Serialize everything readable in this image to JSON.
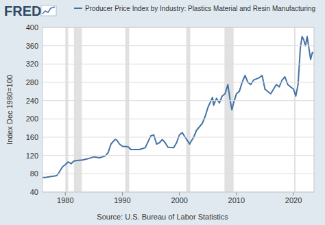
{
  "chart_data": {
    "type": "line",
    "logo": "FRED",
    "y_label": "Index Dec 1980=100",
    "source": "Source: U.S. Bureau of Labor Statistics",
    "grid": true,
    "xlim": [
      1976,
      2023.6
    ],
    "ylim": [
      40,
      400
    ],
    "xticks": [
      1980,
      1990,
      2000,
      2010,
      2020
    ],
    "yticks": [
      40,
      80,
      120,
      160,
      200,
      240,
      280,
      320,
      360,
      400
    ],
    "recessions": [
      {
        "start": 1980.0,
        "end": 1980.5
      },
      {
        "start": 1981.5,
        "end": 1982.9
      },
      {
        "start": 1990.5,
        "end": 1991.2
      },
      {
        "start": 2001.2,
        "end": 2001.9
      },
      {
        "start": 2007.9,
        "end": 2009.5
      },
      {
        "start": 2020.1,
        "end": 2020.35
      }
    ],
    "x": [
      1976.0,
      1976.5,
      1977.0,
      1977.5,
      1978.0,
      1978.5,
      1979.0,
      1979.5,
      1980.0,
      1980.5,
      1981.0,
      1981.5,
      1982.0,
      1983.0,
      1984.0,
      1985.0,
      1986.0,
      1987.0,
      1987.5,
      1988.0,
      1988.7,
      1989.0,
      1989.5,
      1990.0,
      1991.0,
      1991.5,
      1992.0,
      1993.0,
      1994.0,
      1994.5,
      1995.0,
      1995.5,
      1996.0,
      1996.5,
      1997.0,
      1997.5,
      1998.0,
      1999.0,
      1999.5,
      2000.0,
      2000.5,
      2001.0,
      2001.8,
      2002.0,
      2002.5,
      2003.0,
      2004.0,
      2004.5,
      2005.0,
      2005.8,
      2006.0,
      2006.5,
      2007.0,
      2007.5,
      2008.0,
      2008.5,
      2008.9,
      2009.2,
      2009.5,
      2010.0,
      2010.5,
      2011.0,
      2011.5,
      2012.0,
      2012.5,
      2013.0,
      2014.0,
      2014.5,
      2015.0,
      2016.0,
      2016.5,
      2017.0,
      2017.5,
      2018.0,
      2018.5,
      2019.0,
      2019.5,
      2020.0,
      2020.4,
      2020.8,
      2021.2,
      2021.5,
      2021.8,
      2022.1,
      2022.4,
      2022.7,
      2023.0,
      2023.3,
      2023.5
    ],
    "series": [
      {
        "name": "Producer Price Index by Industry: Plastics Material and Resin Manufacturing",
        "color": "#4572a7",
        "values": [
          72,
          72,
          73,
          74,
          75,
          76,
          85,
          95,
          100,
          106,
          102,
          108,
          109,
          110,
          113,
          117,
          115,
          119,
          126,
          145,
          155,
          154,
          145,
          140,
          139,
          133,
          133,
          133,
          137,
          150,
          163,
          165,
          145,
          148,
          155,
          148,
          138,
          137,
          148,
          165,
          170,
          160,
          145,
          150,
          160,
          175,
          190,
          205,
          225,
          247,
          230,
          245,
          235,
          250,
          255,
          275,
          240,
          220,
          235,
          255,
          260,
          280,
          295,
          280,
          275,
          285,
          290,
          295,
          265,
          255,
          265,
          275,
          270,
          285,
          292,
          275,
          270,
          265,
          250,
          275,
          355,
          380,
          373,
          360,
          380,
          355,
          330,
          345,
          345
        ]
      }
    ]
  }
}
